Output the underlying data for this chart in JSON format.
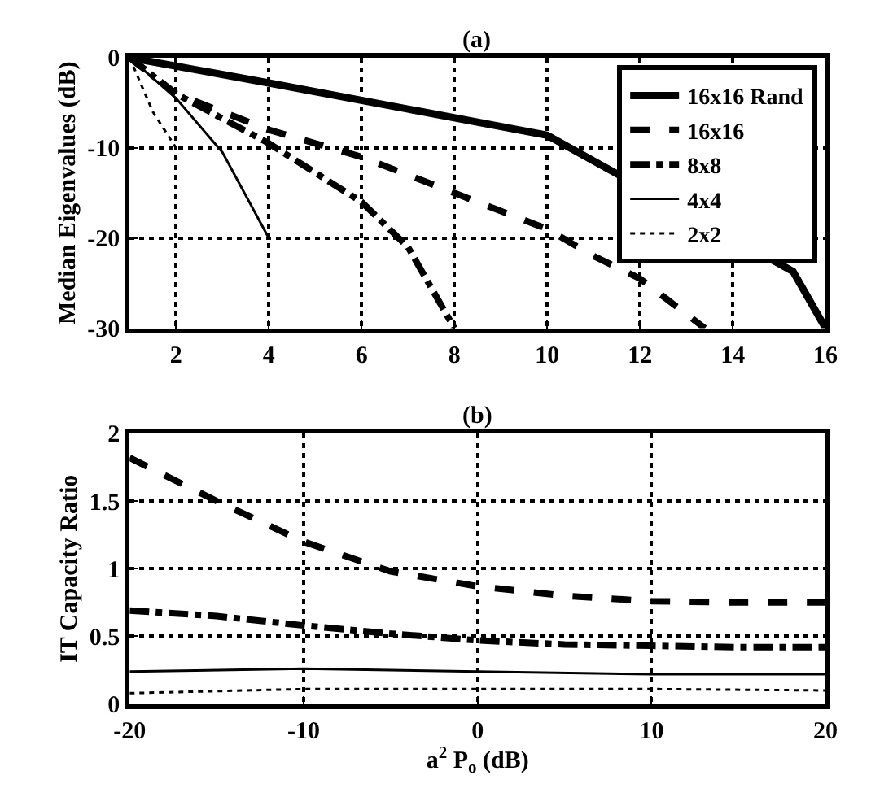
{
  "chart_data": [
    {
      "type": "line",
      "title": "(a)",
      "ylabel": "Median Eigenvalues (dB)",
      "xlim": [
        1,
        16
      ],
      "xticks": [
        2,
        4,
        6,
        8,
        10,
        12,
        14,
        16
      ],
      "ylim": [
        -30,
        0
      ],
      "yticks": [
        -30,
        -20,
        -10,
        0
      ],
      "grid": true,
      "legend": "top right",
      "series": [
        {
          "name": "16x16 Rand",
          "color": "#000000",
          "line_style": "solid",
          "x": [
            1,
            4,
            7,
            10,
            15.3,
            16
          ],
          "values": [
            0,
            -2.8,
            -5.7,
            -8.6,
            -23.7,
            -30
          ]
        },
        {
          "name": "16x16",
          "color": "#000000",
          "line_style": "dashed",
          "x": [
            1,
            2,
            4,
            6,
            8,
            10,
            11,
            12,
            13.4
          ],
          "values": [
            0,
            -4,
            -8,
            -11,
            -15,
            -19,
            -22,
            -24.5,
            -30
          ]
        },
        {
          "name": "8x8",
          "color": "#000000",
          "line_style": "dashdot",
          "x": [
            1,
            2,
            4,
            6,
            7,
            8
          ],
          "values": [
            0,
            -4,
            -9.5,
            -16,
            -21,
            -30
          ]
        },
        {
          "name": "4x4",
          "color": "#000000",
          "line_style": "solid",
          "x": [
            1,
            2,
            3,
            4
          ],
          "values": [
            0,
            -4.5,
            -10.5,
            -20
          ]
        },
        {
          "name": "2x2",
          "color": "#000000",
          "line_style": "dotted",
          "x": [
            1,
            1.5,
            2
          ],
          "values": [
            0,
            -6,
            -10
          ]
        }
      ]
    },
    {
      "type": "line",
      "title": "(b)",
      "xlabel": "a$^{2}$ P$_{o}$ (dB)",
      "ylabel": "IT Capacity Ratio",
      "xlim": [
        -20,
        20
      ],
      "xticks": [
        -20,
        -10,
        0,
        10,
        20
      ],
      "ylim": [
        0,
        2
      ],
      "yticks": [
        0,
        0.5,
        1,
        1.5,
        2
      ],
      "grid": true,
      "series": [
        {
          "color": "#000000",
          "line_style": "dashed",
          "x": [
            -20,
            -15,
            -10,
            -5,
            0,
            5,
            10,
            15,
            20
          ],
          "values": [
            1.82,
            1.5,
            1.2,
            0.98,
            0.87,
            0.8,
            0.76,
            0.75,
            0.75
          ]
        },
        {
          "color": "#000000",
          "line_style": "dashdot",
          "x": [
            -20,
            -15,
            -10,
            -5,
            0,
            5,
            10,
            15,
            20
          ],
          "values": [
            0.69,
            0.65,
            0.58,
            0.52,
            0.47,
            0.44,
            0.43,
            0.42,
            0.42
          ]
        },
        {
          "color": "#000000",
          "line_style": "solid",
          "x": [
            -20,
            -10,
            0,
            10,
            20
          ],
          "values": [
            0.24,
            0.26,
            0.24,
            0.22,
            0.22
          ]
        },
        {
          "color": "#000000",
          "line_style": "dotted",
          "x": [
            -20,
            -10,
            0,
            10,
            20
          ],
          "values": [
            0.08,
            0.11,
            0.11,
            0.11,
            0.1
          ]
        }
      ]
    }
  ]
}
